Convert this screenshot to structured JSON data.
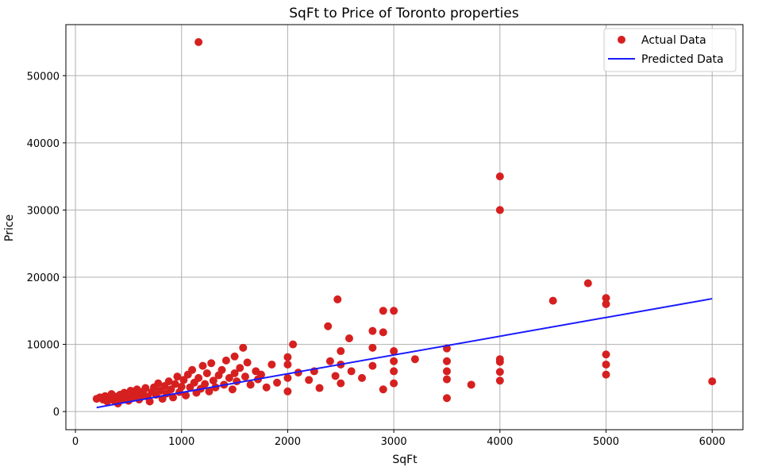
{
  "chart_data": {
    "type": "scatter",
    "title": "SqFt to Price of Toronto properties",
    "xlabel": "SqFt",
    "ylabel": "Price",
    "xlim": [
      -90,
      6290
    ],
    "ylim": [
      -2700,
      57600
    ],
    "xticks": [
      0,
      1000,
      2000,
      3000,
      4000,
      5000,
      6000
    ],
    "yticks": [
      0,
      10000,
      20000,
      30000,
      40000,
      50000
    ],
    "grid": true,
    "legend_position": "top-right",
    "colors": {
      "actual": "#d62020",
      "predicted": "#1a1aff"
    },
    "series": [
      {
        "name": "Actual Data",
        "kind": "scatter",
        "points": [
          [
            200,
            1900
          ],
          [
            230,
            2100
          ],
          [
            260,
            1800
          ],
          [
            280,
            2300
          ],
          [
            300,
            1500
          ],
          [
            320,
            2000
          ],
          [
            340,
            2600
          ],
          [
            360,
            1700
          ],
          [
            380,
            2200
          ],
          [
            400,
            1200
          ],
          [
            420,
            2500
          ],
          [
            440,
            1900
          ],
          [
            460,
            2800
          ],
          [
            480,
            2300
          ],
          [
            500,
            1600
          ],
          [
            520,
            3100
          ],
          [
            540,
            2100
          ],
          [
            560,
            2700
          ],
          [
            580,
            3300
          ],
          [
            600,
            1800
          ],
          [
            620,
            2400
          ],
          [
            640,
            3000
          ],
          [
            660,
            3500
          ],
          [
            680,
            2200
          ],
          [
            700,
            1500
          ],
          [
            720,
            2900
          ],
          [
            740,
            3600
          ],
          [
            760,
            2500
          ],
          [
            780,
            4200
          ],
          [
            800,
            3100
          ],
          [
            820,
            1900
          ],
          [
            840,
            3800
          ],
          [
            860,
            2700
          ],
          [
            880,
            4500
          ],
          [
            900,
            3300
          ],
          [
            920,
            2100
          ],
          [
            940,
            4100
          ],
          [
            960,
            5200
          ],
          [
            980,
            2900
          ],
          [
            1000,
            3700
          ],
          [
            1020,
            4700
          ],
          [
            1040,
            2400
          ],
          [
            1060,
            5500
          ],
          [
            1080,
            3600
          ],
          [
            1100,
            6200
          ],
          [
            1120,
            4300
          ],
          [
            1140,
            2800
          ],
          [
            1160,
            5000
          ],
          [
            1180,
            3400
          ],
          [
            1200,
            6800
          ],
          [
            1220,
            4100
          ],
          [
            1240,
            5700
          ],
          [
            1260,
            3000
          ],
          [
            1280,
            7200
          ],
          [
            1300,
            4600
          ],
          [
            1320,
            3600
          ],
          [
            1350,
            5400
          ],
          [
            1380,
            6200
          ],
          [
            1400,
            4000
          ],
          [
            1420,
            7600
          ],
          [
            1450,
            5000
          ],
          [
            1480,
            3300
          ],
          [
            1500,
            8200
          ],
          [
            1500,
            5700
          ],
          [
            1520,
            4500
          ],
          [
            1550,
            6500
          ],
          [
            1580,
            9500
          ],
          [
            1600,
            5200
          ],
          [
            1620,
            7300
          ],
          [
            1650,
            4000
          ],
          [
            1700,
            6000
          ],
          [
            1720,
            4800
          ],
          [
            1750,
            5500
          ],
          [
            1800,
            3600
          ],
          [
            1850,
            7000
          ],
          [
            1900,
            4300
          ],
          [
            2000,
            5000
          ],
          [
            2000,
            7000
          ],
          [
            2000,
            8100
          ],
          [
            2000,
            3000
          ],
          [
            2050,
            10000
          ],
          [
            2100,
            5800
          ],
          [
            2200,
            4700
          ],
          [
            2250,
            6000
          ],
          [
            2300,
            3500
          ],
          [
            2380,
            12700
          ],
          [
            2400,
            7500
          ],
          [
            2450,
            5300
          ],
          [
            2470,
            16700
          ],
          [
            2500,
            9000
          ],
          [
            2500,
            7000
          ],
          [
            2500,
            4200
          ],
          [
            2580,
            10900
          ],
          [
            2600,
            6000
          ],
          [
            2700,
            5000
          ],
          [
            2800,
            12000
          ],
          [
            2800,
            9500
          ],
          [
            2800,
            6800
          ],
          [
            2900,
            15000
          ],
          [
            2900,
            11800
          ],
          [
            2900,
            3300
          ],
          [
            3000,
            15000
          ],
          [
            3000,
            9000
          ],
          [
            3000,
            7500
          ],
          [
            3000,
            6000
          ],
          [
            3000,
            4200
          ],
          [
            3200,
            7800
          ],
          [
            3500,
            9400
          ],
          [
            3500,
            7500
          ],
          [
            3500,
            6000
          ],
          [
            3500,
            4800
          ],
          [
            3500,
            2000
          ],
          [
            3730,
            4000
          ],
          [
            4000,
            35000
          ],
          [
            4000,
            30000
          ],
          [
            4000,
            7800
          ],
          [
            4000,
            7400
          ],
          [
            4000,
            5900
          ],
          [
            4000,
            4600
          ],
          [
            4500,
            16500
          ],
          [
            4830,
            19100
          ],
          [
            5000,
            16900
          ],
          [
            5000,
            16000
          ],
          [
            5000,
            8500
          ],
          [
            5000,
            7000
          ],
          [
            5000,
            5500
          ],
          [
            6000,
            4500
          ],
          [
            1160,
            55000
          ]
        ]
      },
      {
        "name": "Predicted Data",
        "kind": "line",
        "points": [
          [
            200,
            600
          ],
          [
            6000,
            16800
          ]
        ]
      }
    ]
  }
}
